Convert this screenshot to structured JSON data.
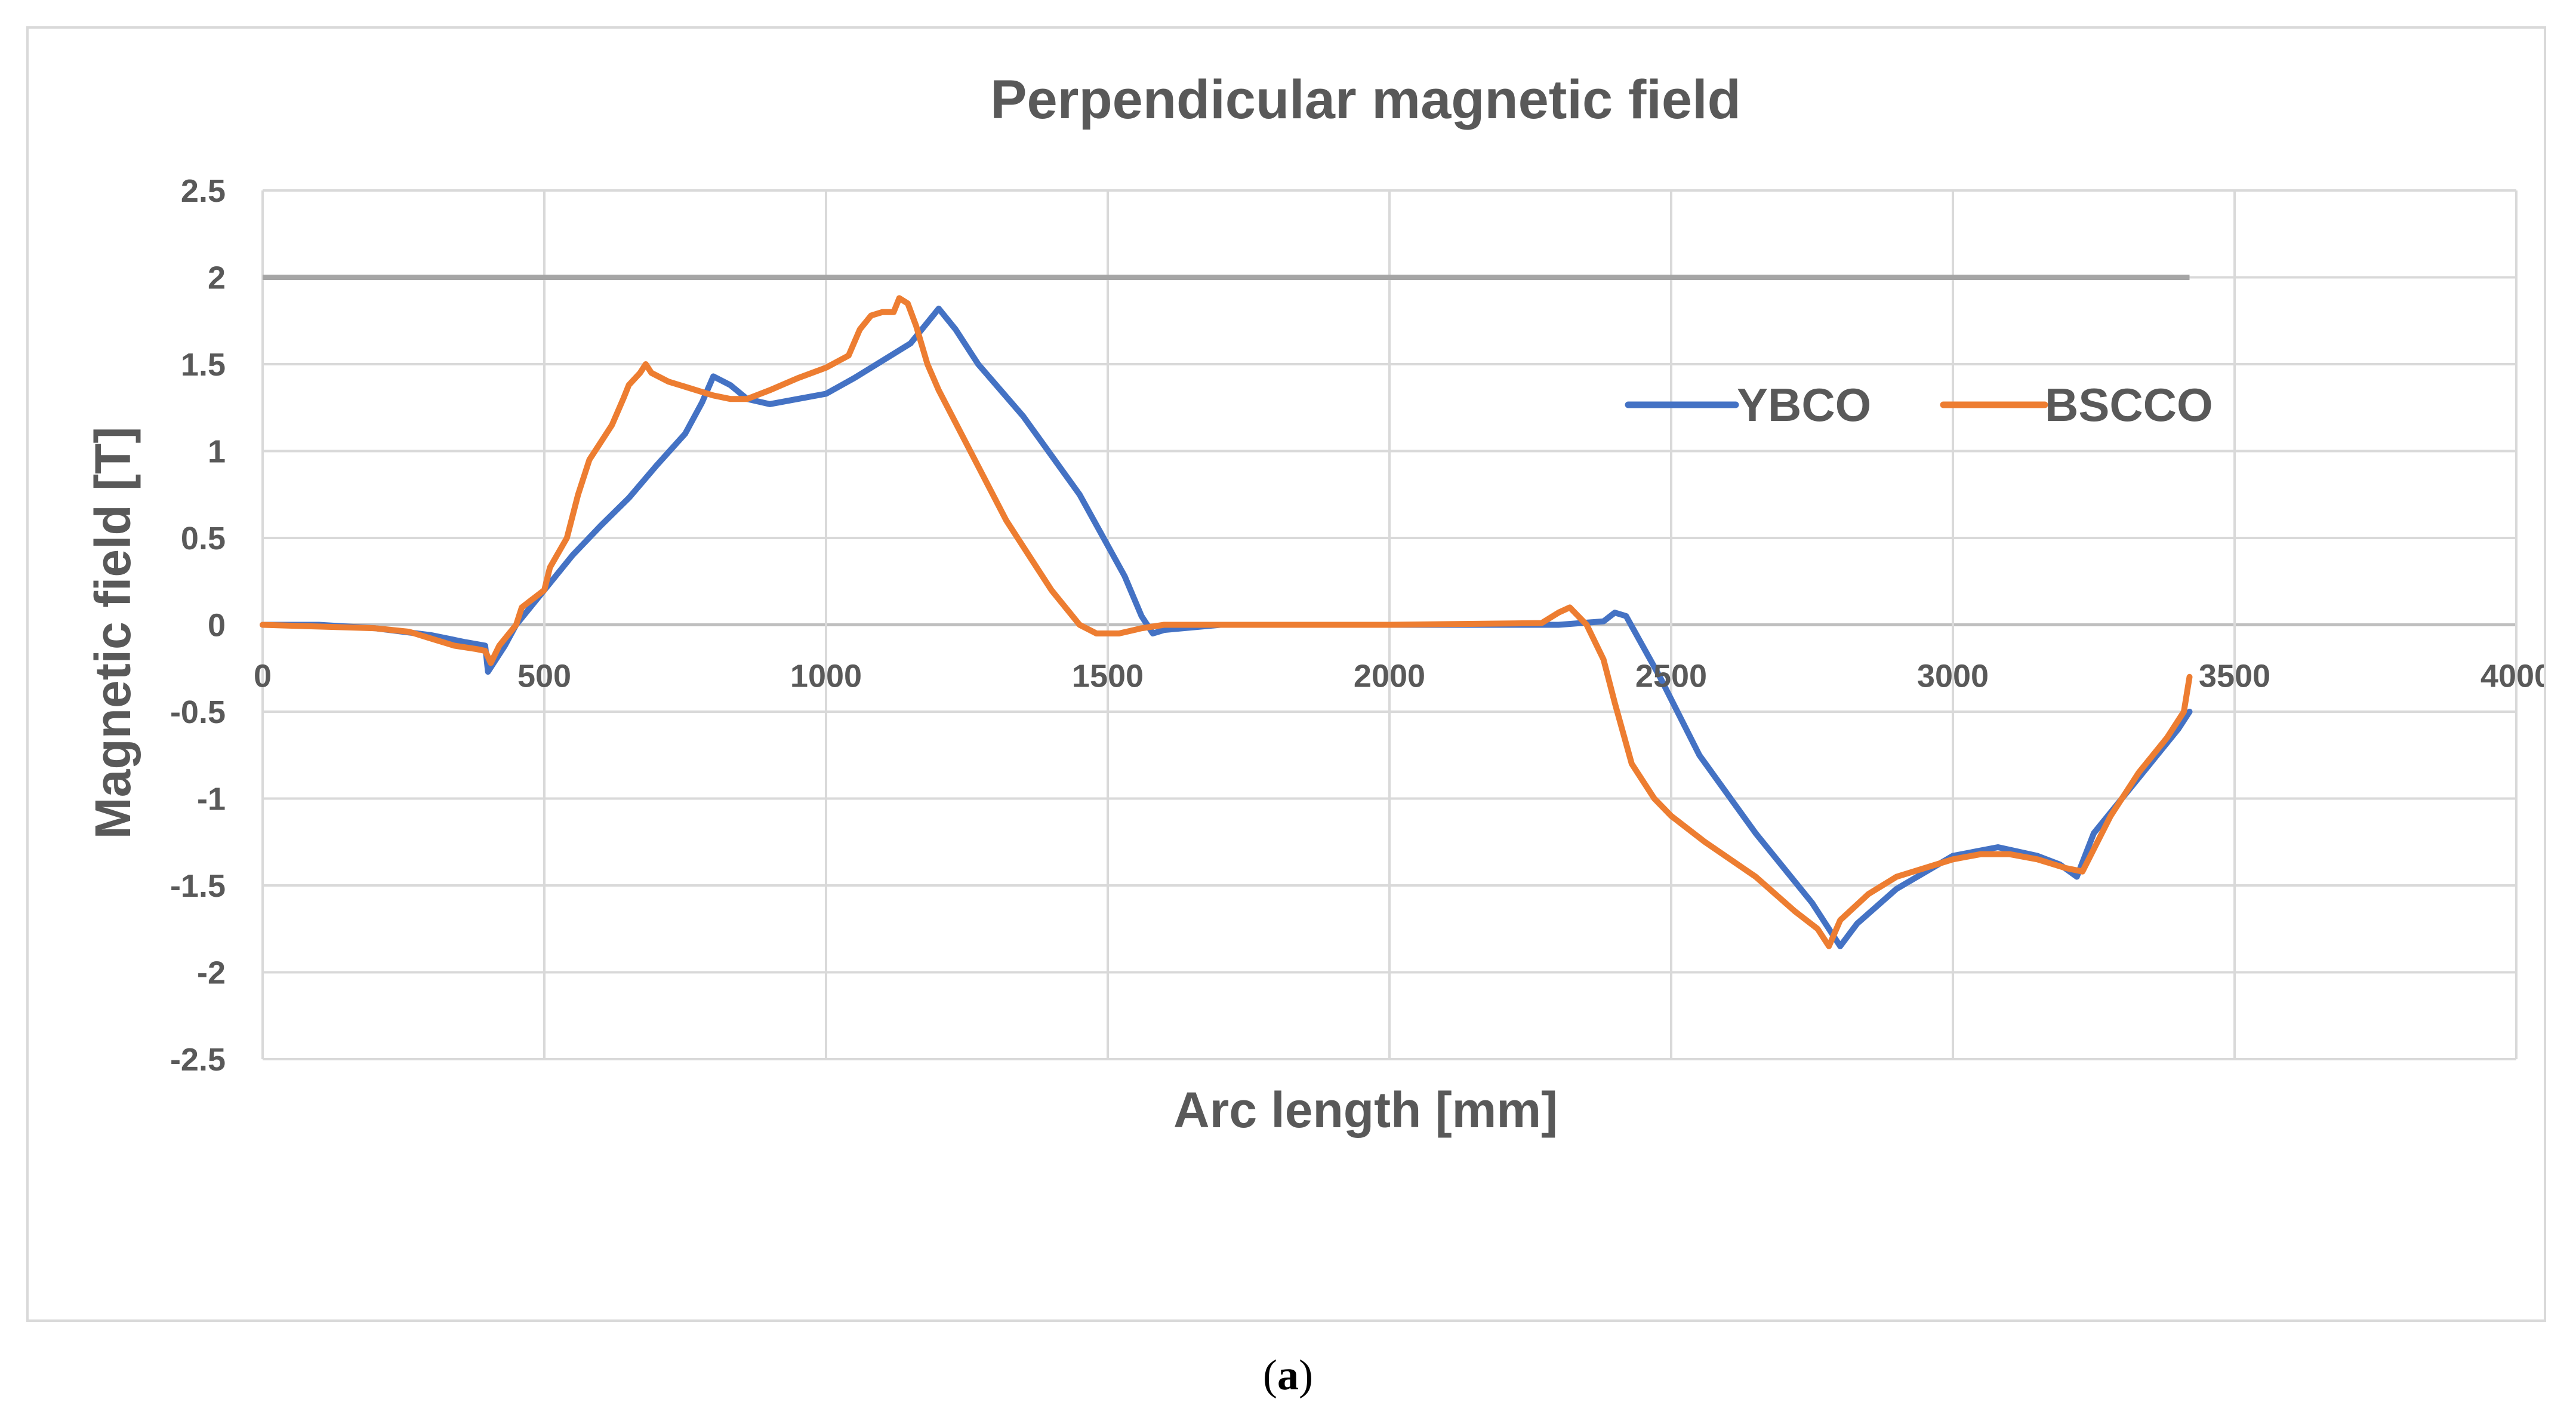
{
  "caption": {
    "open": "(",
    "letter": "a",
    "close": ")"
  },
  "chart_data": {
    "type": "line",
    "title": "Perpendicular magnetic field",
    "xlabel": "Arc length [mm]",
    "ylabel": "Magnetic field [T]",
    "xlim": [
      0,
      4000
    ],
    "ylim": [
      -2.5,
      2.5
    ],
    "xticks": [
      0,
      500,
      1000,
      1500,
      2000,
      2500,
      3000,
      3500,
      4000
    ],
    "yticks": [
      2.5,
      2,
      1.5,
      1,
      0.5,
      0,
      -0.5,
      -1,
      -1.5,
      -2,
      -2.5
    ],
    "xtick_labels": [
      "0",
      "500",
      "1000",
      "1500",
      "2000",
      "2500",
      "3000",
      "3500",
      "4000"
    ],
    "ytick_labels": [
      "2.5",
      "2",
      "1.5",
      "1",
      "0.5",
      "0",
      "-0.5",
      "-1",
      "-1.5",
      "-2",
      "-2.5"
    ],
    "grid": true,
    "legend_position": "upper-right inside plot",
    "reference_line": {
      "y": 2,
      "x_start": 0,
      "x_end": 3420,
      "color": "#a5a5a5"
    },
    "series": [
      {
        "name": "YBCO",
        "color": "#4472c4",
        "x": [
          0,
          100,
          200,
          300,
          360,
          395,
          400,
          410,
          430,
          450,
          500,
          550,
          600,
          650,
          700,
          750,
          780,
          800,
          830,
          860,
          900,
          950,
          1000,
          1050,
          1100,
          1150,
          1200,
          1230,
          1270,
          1350,
          1450,
          1530,
          1560,
          1580,
          1600,
          1700,
          2000,
          2300,
          2380,
          2400,
          2420,
          2480,
          2550,
          2650,
          2750,
          2780,
          2800,
          2830,
          2900,
          3000,
          3080,
          3150,
          3190,
          3220,
          3250,
          3300,
          3350,
          3400,
          3420
        ],
        "y": [
          0,
          0,
          -0.02,
          -0.06,
          -0.1,
          -0.12,
          -0.27,
          -0.22,
          -0.12,
          0,
          0.2,
          0.4,
          0.57,
          0.73,
          0.92,
          1.1,
          1.28,
          1.43,
          1.38,
          1.3,
          1.27,
          1.3,
          1.33,
          1.42,
          1.52,
          1.62,
          1.82,
          1.7,
          1.5,
          1.2,
          0.75,
          0.28,
          0.05,
          -0.05,
          -0.03,
          0,
          0,
          0,
          0.02,
          0.07,
          0.05,
          -0.3,
          -0.75,
          -1.2,
          -1.6,
          -1.75,
          -1.85,
          -1.72,
          -1.52,
          -1.33,
          -1.28,
          -1.33,
          -1.38,
          -1.45,
          -1.2,
          -1.0,
          -0.8,
          -0.6,
          -0.5
        ]
      },
      {
        "name": "BSCCO",
        "color": "#ed7d31",
        "x": [
          0,
          100,
          200,
          260,
          300,
          340,
          380,
          395,
          405,
          420,
          450,
          460,
          500,
          510,
          540,
          560,
          580,
          600,
          620,
          640,
          650,
          670,
          680,
          690,
          720,
          760,
          800,
          830,
          860,
          900,
          950,
          1000,
          1040,
          1060,
          1080,
          1100,
          1120,
          1130,
          1145,
          1160,
          1180,
          1200,
          1240,
          1280,
          1320,
          1360,
          1400,
          1430,
          1450,
          1480,
          1520,
          1560,
          1600,
          2000,
          2270,
          2300,
          2320,
          2350,
          2380,
          2400,
          2430,
          2470,
          2500,
          2560,
          2650,
          2720,
          2760,
          2780,
          2800,
          2850,
          2900,
          3000,
          3050,
          3100,
          3150,
          3200,
          3230,
          3280,
          3330,
          3380,
          3410,
          3420
        ],
        "y": [
          0,
          -0.01,
          -0.02,
          -0.04,
          -0.08,
          -0.12,
          -0.14,
          -0.15,
          -0.22,
          -0.12,
          0,
          0.1,
          0.2,
          0.33,
          0.5,
          0.75,
          0.95,
          1.05,
          1.15,
          1.3,
          1.38,
          1.45,
          1.5,
          1.45,
          1.4,
          1.36,
          1.32,
          1.3,
          1.3,
          1.35,
          1.42,
          1.48,
          1.55,
          1.7,
          1.78,
          1.8,
          1.8,
          1.88,
          1.85,
          1.72,
          1.5,
          1.35,
          1.1,
          0.85,
          0.6,
          0.4,
          0.2,
          0.08,
          0,
          -0.05,
          -0.05,
          -0.02,
          0,
          0,
          0.01,
          0.07,
          0.1,
          0,
          -0.2,
          -0.45,
          -0.8,
          -1.0,
          -1.1,
          -1.25,
          -1.45,
          -1.65,
          -1.75,
          -1.85,
          -1.7,
          -1.55,
          -1.45,
          -1.35,
          -1.32,
          -1.32,
          -1.35,
          -1.4,
          -1.42,
          -1.1,
          -0.85,
          -0.65,
          -0.5,
          -0.3
        ]
      }
    ]
  }
}
